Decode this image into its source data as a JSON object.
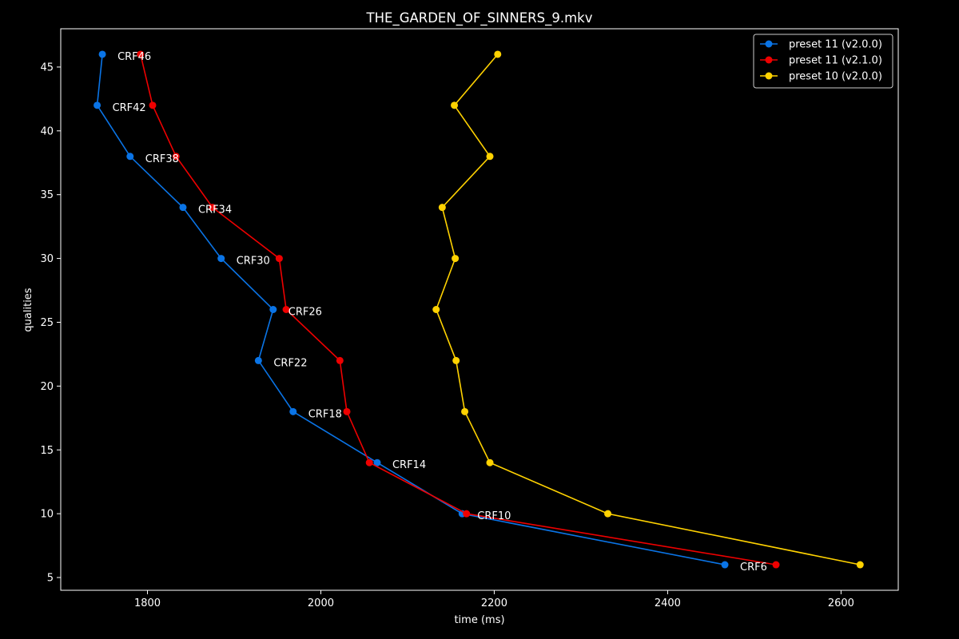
{
  "chart_data": {
    "type": "line",
    "title": "THE_GARDEN_OF_SINNERS_9.mkv",
    "xlabel": "time (ms)",
    "ylabel": "qualities",
    "xlim": [
      1700,
      2666
    ],
    "ylim": [
      4,
      48
    ],
    "xticks": [
      1800,
      2000,
      2200,
      2400,
      2600
    ],
    "yticks": [
      5,
      10,
      15,
      20,
      25,
      30,
      35,
      40,
      45
    ],
    "grid": false,
    "legend_position": "top-right",
    "background": "#000000",
    "foreground": "#ffffff",
    "series": [
      {
        "name": "preset 11 (v2.0.0)",
        "color": "#0a74e6",
        "points": [
          {
            "x": 1748,
            "y": 46
          },
          {
            "x": 1742,
            "y": 42
          },
          {
            "x": 1780,
            "y": 38
          },
          {
            "x": 1841,
            "y": 34
          },
          {
            "x": 1885,
            "y": 30
          },
          {
            "x": 1945,
            "y": 26
          },
          {
            "x": 1928,
            "y": 22
          },
          {
            "x": 1968,
            "y": 18
          },
          {
            "x": 2065,
            "y": 14
          },
          {
            "x": 2163,
            "y": 10
          },
          {
            "x": 2466,
            "y": 6
          }
        ]
      },
      {
        "name": "preset 11 (v2.1.0)",
        "color": "#ee0000",
        "points": [
          {
            "x": 1792,
            "y": 46
          },
          {
            "x": 1806,
            "y": 42
          },
          {
            "x": 1833,
            "y": 38
          },
          {
            "x": 1875,
            "y": 34
          },
          {
            "x": 1952,
            "y": 30
          },
          {
            "x": 1960,
            "y": 26
          },
          {
            "x": 2022,
            "y": 22
          },
          {
            "x": 2030,
            "y": 18
          },
          {
            "x": 2056,
            "y": 14
          },
          {
            "x": 2168,
            "y": 10
          },
          {
            "x": 2525,
            "y": 6
          }
        ]
      },
      {
        "name": "preset 10 (v2.0.0)",
        "color": "#ffd200",
        "points": [
          {
            "x": 2204,
            "y": 46
          },
          {
            "x": 2154,
            "y": 42
          },
          {
            "x": 2195,
            "y": 38
          },
          {
            "x": 2140,
            "y": 34
          },
          {
            "x": 2155,
            "y": 30
          },
          {
            "x": 2133,
            "y": 26
          },
          {
            "x": 2156,
            "y": 22
          },
          {
            "x": 2166,
            "y": 18
          },
          {
            "x": 2195,
            "y": 14
          },
          {
            "x": 2331,
            "y": 10
          },
          {
            "x": 2622,
            "y": 6
          }
        ]
      }
    ],
    "annotations": [
      {
        "text": "CRF46",
        "x": 1748,
        "y": 46
      },
      {
        "text": "CRF42",
        "x": 1742,
        "y": 42
      },
      {
        "text": "CRF38",
        "x": 1780,
        "y": 38
      },
      {
        "text": "CRF34",
        "x": 1841,
        "y": 34
      },
      {
        "text": "CRF30",
        "x": 1885,
        "y": 30
      },
      {
        "text": "CRF26",
        "x": 1945,
        "y": 26
      },
      {
        "text": "CRF22",
        "x": 1928,
        "y": 22
      },
      {
        "text": "CRF18",
        "x": 1968,
        "y": 18
      },
      {
        "text": "CRF14",
        "x": 2065,
        "y": 14
      },
      {
        "text": "CRF10",
        "x": 2163,
        "y": 10
      },
      {
        "text": "CRF6",
        "x": 2466,
        "y": 6
      }
    ]
  }
}
